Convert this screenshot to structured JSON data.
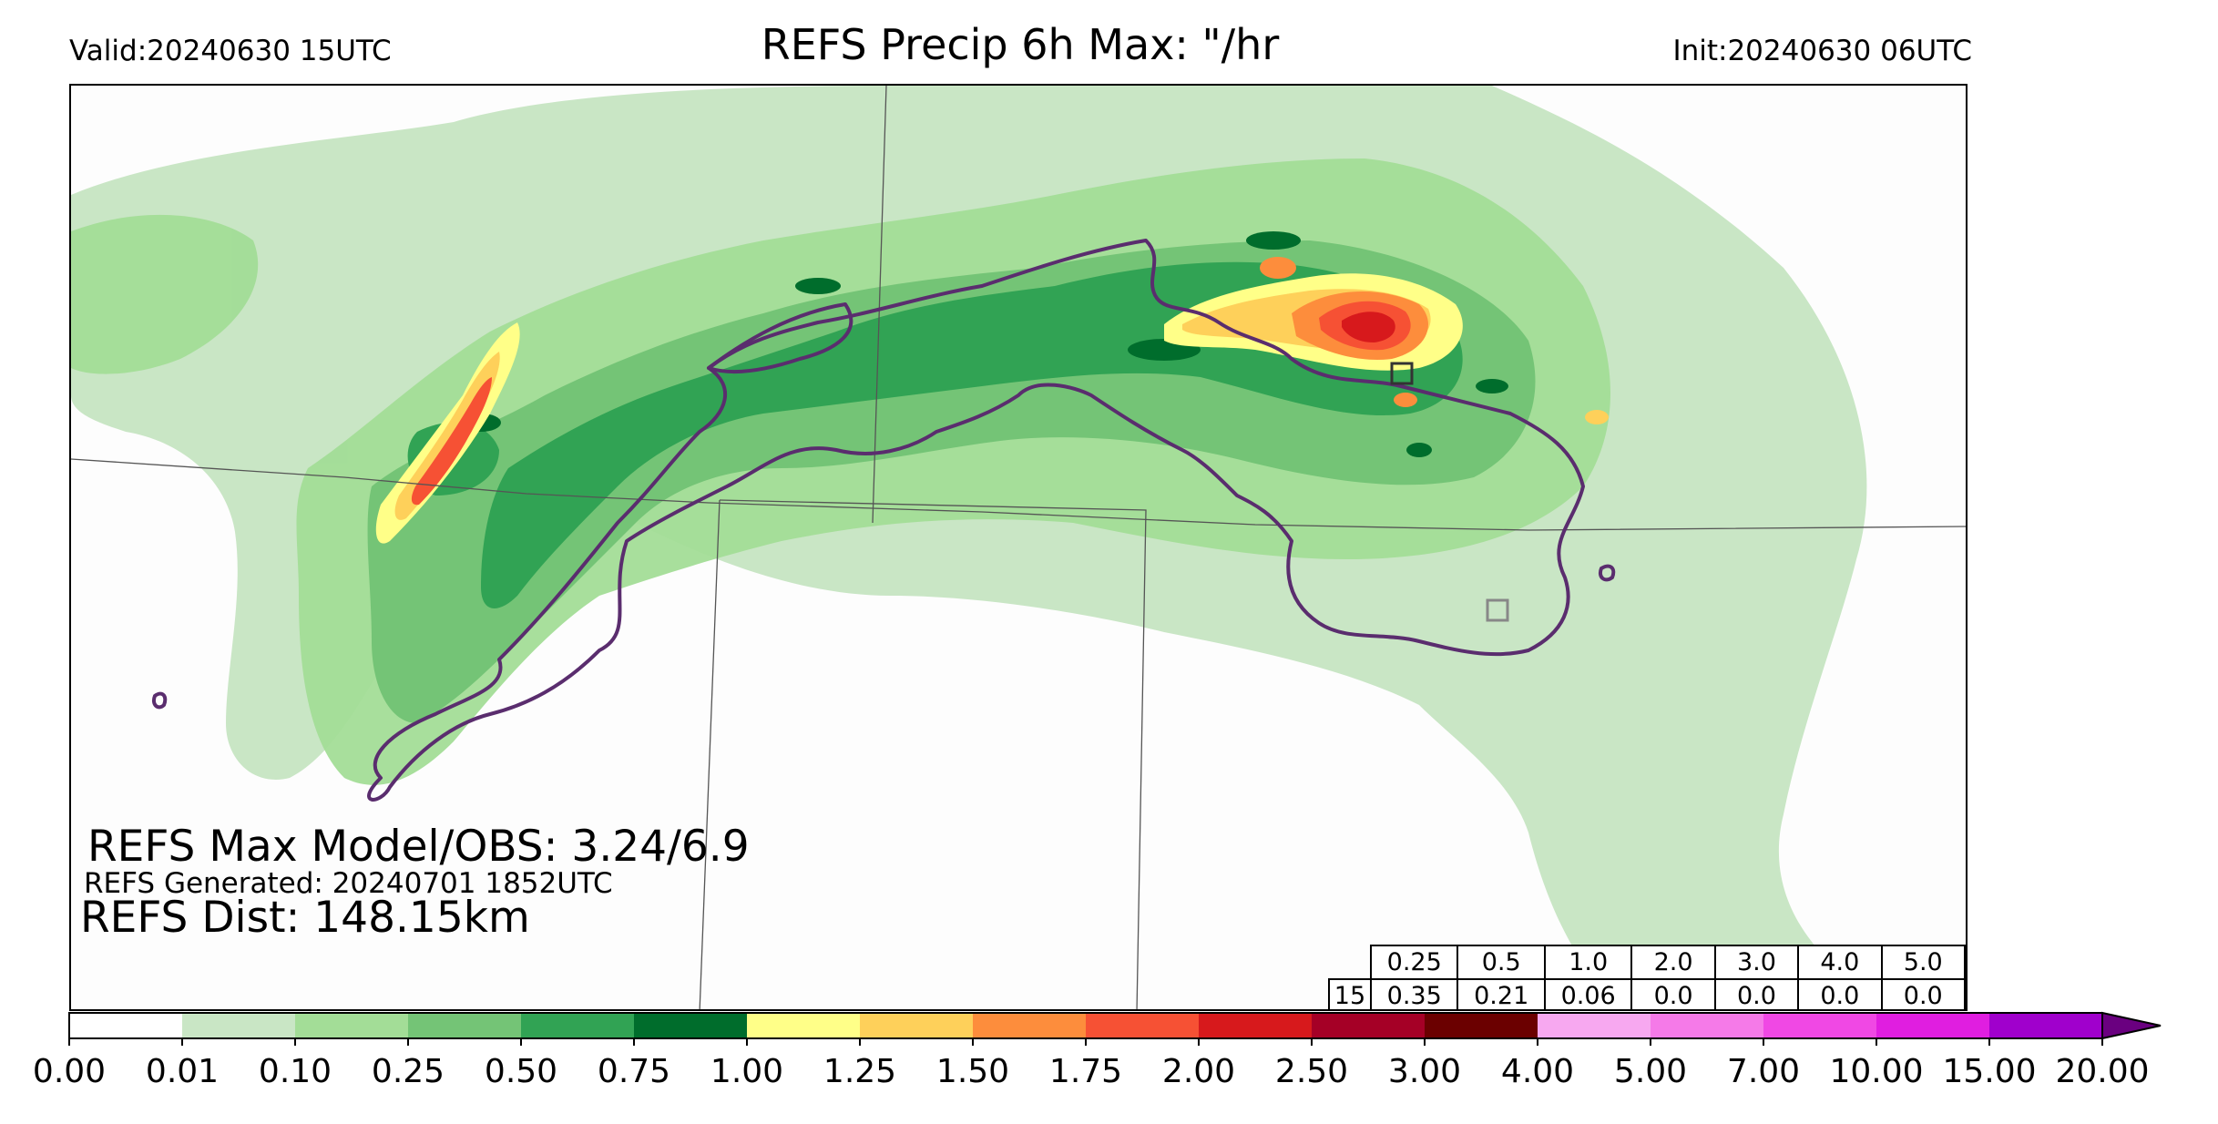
{
  "header": {
    "valid": "Valid:20240630 15UTC",
    "title": "REFS Precip 6h Max: \"/hr",
    "init": "Init:20240630 06UTC"
  },
  "stats": {
    "max_model_obs": "REFS Max Model/OBS: 3.24/6.9",
    "generated": "REFS Generated: 20240701 1852UTC",
    "distance": "REFS Dist: 148.15km"
  },
  "table": {
    "header": [
      "0.25",
      "0.5",
      "1.0",
      "2.0",
      "3.0",
      "4.0",
      "5.0"
    ],
    "row_label": "15",
    "row": [
      "0.35",
      "0.21",
      "0.06",
      "0.0",
      "0.0",
      "0.0",
      "0.0"
    ]
  },
  "colorbar": {
    "tick_labels": [
      "0.00",
      "0.01",
      "0.10",
      "0.25",
      "0.50",
      "0.75",
      "1.00",
      "1.25",
      "1.50",
      "1.75",
      "2.00",
      "2.50",
      "3.00",
      "4.00",
      "5.00",
      "7.00",
      "10.00",
      "15.00",
      "20.00"
    ],
    "colors": [
      "#ffffff",
      "#c9e6c5",
      "#a3dd97",
      "#74c476",
      "#31a354",
      "#006d2c",
      "#ffff88",
      "#fed05a",
      "#fd8d3c",
      "#f65134",
      "#d7191c",
      "#a50026",
      "#6b0000",
      "#f7a8f0",
      "#f57ae8",
      "#f048e4",
      "#e01ee0",
      "#a000cc",
      "#6a0080"
    ]
  }
}
